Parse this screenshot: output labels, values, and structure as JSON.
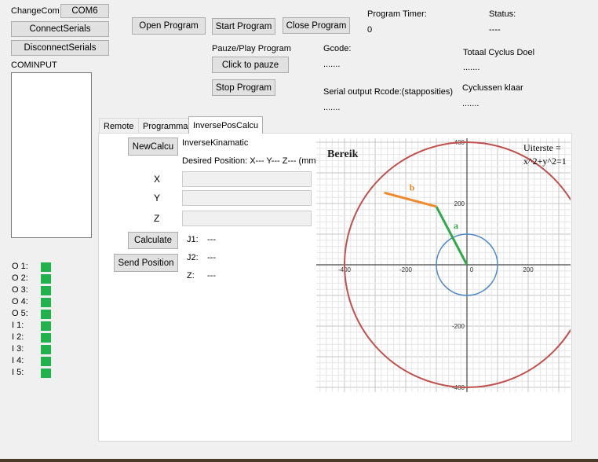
{
  "top": {
    "change_com_label": "ChangeCom",
    "com_button": "COM6",
    "connect_serials": "ConnectSerials",
    "disconnect_serials": "DisconnectSerials",
    "cominput_label": "COMINPUT",
    "open_program": "Open Program",
    "start_program": "Start Program",
    "close_program": "Close Program",
    "program_timer_label": "Program Timer:",
    "program_timer_value": "0",
    "status_label": "Status:",
    "status_value": "----",
    "pauze_label": "Pauze/Play Program",
    "click_to_pauze": "Click to pauze",
    "stop_program": "Stop Program",
    "gcode_label": "Gcode:",
    "gcode_value": ".......",
    "totaal_label": "Totaal Cyclus Doel",
    "totaal_value": ".......",
    "serial_output_label": "Serial output Rcode:(stapposities)",
    "serial_output_value": ".......",
    "cyclussen_label": "Cyclussen klaar",
    "cyclussen_value": "......."
  },
  "io": [
    {
      "label": "O 1:",
      "state": "on"
    },
    {
      "label": "O 2:",
      "state": "on"
    },
    {
      "label": "O 3:",
      "state": "on"
    },
    {
      "label": "O 4:",
      "state": "on"
    },
    {
      "label": "O 5:",
      "state": "on"
    },
    {
      "label": "I 1:",
      "state": "on"
    },
    {
      "label": "I 2:",
      "state": "on"
    },
    {
      "label": "I 3:",
      "state": "on"
    },
    {
      "label": "I 4:",
      "state": "on"
    },
    {
      "label": "I 5:",
      "state": "on"
    }
  ],
  "tabs": [
    "Remote",
    "Programma",
    "InversePosCalcu"
  ],
  "active_tab": "InversePosCalcu",
  "ipc": {
    "new_calcu": "NewCalcu",
    "inverse_label": "InverseKinamatic",
    "desired_label": "Desired Position: X--- Y--- Z--- (mm)",
    "x_label": "X",
    "y_label": "Y",
    "z_label": "Z",
    "calculate": "Calculate",
    "send_position": "Send Position",
    "j1_label": "J1:",
    "j1_value": "---",
    "j2_label": "J2:",
    "j2_value": "---",
    "z_out_label": "Z:",
    "z_out_value": "---"
  },
  "graph": {
    "title": "Bereik",
    "note_line1": "Uiterste =",
    "note_line2": "x^2+y^2=1",
    "label_a": "a",
    "label_b": "b",
    "x_ticks": [
      "-400",
      "-200",
      "0",
      "200"
    ],
    "y_ticks": [
      "400",
      "200",
      "-200",
      "-400"
    ],
    "colors": {
      "outer_circle": "#c0504d",
      "inner_circle": "#4a86c8",
      "arm_a": "#2eaa4a",
      "arm_b": "#f08a2c"
    }
  }
}
